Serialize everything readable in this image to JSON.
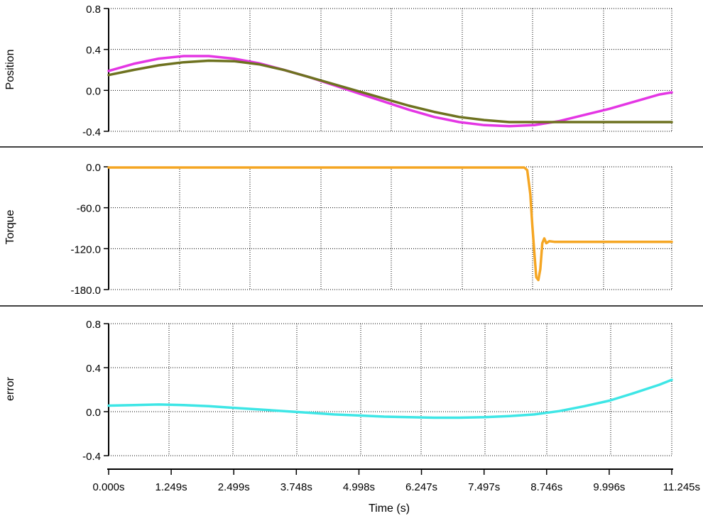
{
  "chart_data": [
    {
      "type": "line",
      "ylabel": "Position",
      "ylim": [
        -0.4,
        0.8
      ],
      "yticks": [
        0.8,
        0.4,
        0.0,
        -0.4
      ],
      "ytick_labels": [
        "0.8",
        "0.4",
        "0.0",
        "-0.4"
      ],
      "xlim": [
        0,
        11.245
      ],
      "grid": true,
      "series": [
        {
          "color": "#e436e4",
          "x": [
            0,
            0.5,
            1.0,
            1.5,
            2.0,
            2.5,
            3.0,
            3.5,
            4.0,
            4.5,
            5.0,
            5.5,
            6.0,
            6.5,
            7.0,
            7.5,
            8.0,
            8.5,
            9.0,
            9.5,
            10.0,
            10.5,
            11.0,
            11.245
          ],
          "y": [
            0.19,
            0.26,
            0.31,
            0.335,
            0.335,
            0.31,
            0.265,
            0.2,
            0.13,
            0.05,
            -0.03,
            -0.11,
            -0.19,
            -0.26,
            -0.31,
            -0.34,
            -0.35,
            -0.34,
            -0.3,
            -0.24,
            -0.18,
            -0.11,
            -0.04,
            -0.02
          ]
        },
        {
          "color": "#6e7220",
          "x": [
            0,
            0.5,
            1.0,
            1.5,
            2.0,
            2.5,
            3.0,
            3.5,
            4.0,
            4.5,
            5.0,
            5.5,
            6.0,
            6.5,
            7.0,
            7.5,
            8.0,
            8.5,
            9.0,
            9.5,
            10.0,
            10.5,
            11.0,
            11.245
          ],
          "y": [
            0.15,
            0.2,
            0.245,
            0.275,
            0.29,
            0.285,
            0.255,
            0.2,
            0.13,
            0.06,
            -0.01,
            -0.08,
            -0.15,
            -0.21,
            -0.26,
            -0.29,
            -0.31,
            -0.31,
            -0.31,
            -0.31,
            -0.31,
            -0.31,
            -0.31,
            -0.31
          ]
        }
      ]
    },
    {
      "type": "line",
      "ylabel": "Torque",
      "ylim": [
        -180,
        0
      ],
      "yticks": [
        0,
        -60,
        -120,
        -180
      ],
      "ytick_labels": [
        "0.0",
        "-60.0",
        "-120.0",
        "-180.0"
      ],
      "xlim": [
        0,
        11.245
      ],
      "grid": true,
      "series": [
        {
          "color": "#f5a623",
          "x": [
            0,
            8.3,
            8.36,
            8.42,
            8.46,
            8.5,
            8.54,
            8.58,
            8.62,
            8.66,
            8.7,
            8.74,
            8.8,
            8.9,
            9.2,
            9.6,
            10.0,
            10.5,
            11.0,
            11.245
          ],
          "y": [
            -1,
            -1,
            -5,
            -40,
            -85,
            -125,
            -162,
            -166,
            -150,
            -112,
            -105,
            -112,
            -109,
            -110,
            -110,
            -110,
            -110,
            -110,
            -110,
            -110
          ]
        }
      ]
    },
    {
      "type": "line",
      "ylabel": "error",
      "xlabel": "Time (s)",
      "ylim": [
        -0.4,
        0.8
      ],
      "yticks": [
        0.8,
        0.4,
        0.0,
        -0.4
      ],
      "ytick_labels": [
        "0.8",
        "0.4",
        "0.0",
        "-0.4"
      ],
      "xlim": [
        0,
        11.245
      ],
      "xticks": [
        0,
        1.249,
        2.499,
        3.748,
        4.998,
        6.247,
        7.497,
        8.746,
        9.996,
        11.245
      ],
      "xtick_labels": [
        "0.000s",
        "1.249s",
        "2.499s",
        "3.748s",
        "4.998s",
        "6.247s",
        "7.497s",
        "8.746s",
        "9.996s",
        "11.245s"
      ],
      "grid": true,
      "series": [
        {
          "color": "#3ee6e6",
          "x": [
            0,
            0.5,
            1.0,
            1.5,
            2.0,
            2.5,
            3.0,
            3.5,
            4.0,
            4.5,
            5.0,
            5.5,
            6.0,
            6.5,
            7.0,
            7.5,
            8.0,
            8.5,
            9.0,
            9.5,
            10.0,
            10.5,
            11.0,
            11.245
          ],
          "y": [
            0.055,
            0.06,
            0.065,
            0.06,
            0.05,
            0.035,
            0.02,
            0.005,
            -0.01,
            -0.025,
            -0.035,
            -0.045,
            -0.05,
            -0.055,
            -0.055,
            -0.05,
            -0.04,
            -0.025,
            0.005,
            0.05,
            0.1,
            0.17,
            0.245,
            0.29
          ]
        }
      ]
    }
  ]
}
